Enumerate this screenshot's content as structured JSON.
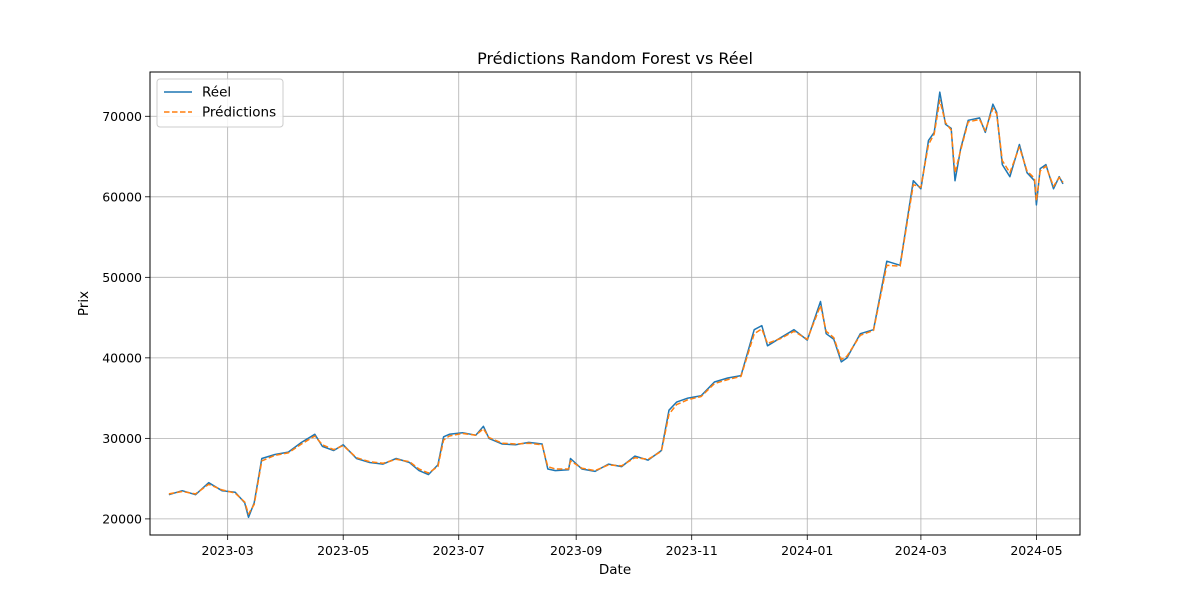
{
  "chart_data": {
    "type": "line",
    "title": "Prédictions Random Forest vs Réel",
    "xlabel": "Date",
    "ylabel": "Prix",
    "x_tick_labels": [
      "2023-03",
      "2023-05",
      "2023-07",
      "2023-09",
      "2023-11",
      "2024-01",
      "2024-03",
      "2024-05"
    ],
    "y_tick_labels": [
      "20000",
      "30000",
      "40000",
      "50000",
      "60000",
      "70000"
    ],
    "y_ticks": [
      20000,
      30000,
      40000,
      50000,
      60000,
      70000
    ],
    "ylim": [
      18000,
      75500
    ],
    "xlim": [
      "2023-01-19",
      "2024-05-24"
    ],
    "grid": true,
    "legend_position": "upper-left",
    "series": [
      {
        "name": "Réel",
        "color": "#1f77b4",
        "style": "solid",
        "x": [
          "2023-01-29",
          "2023-02-05",
          "2023-02-12",
          "2023-02-19",
          "2023-02-26",
          "2023-03-05",
          "2023-03-10",
          "2023-03-12",
          "2023-03-15",
          "2023-03-19",
          "2023-03-26",
          "2023-04-02",
          "2023-04-09",
          "2023-04-16",
          "2023-04-20",
          "2023-04-26",
          "2023-05-01",
          "2023-05-08",
          "2023-05-15",
          "2023-05-22",
          "2023-05-29",
          "2023-06-05",
          "2023-06-10",
          "2023-06-15",
          "2023-06-20",
          "2023-06-23",
          "2023-06-26",
          "2023-07-03",
          "2023-07-10",
          "2023-07-14",
          "2023-07-17",
          "2023-07-24",
          "2023-07-31",
          "2023-08-07",
          "2023-08-14",
          "2023-08-17",
          "2023-08-21",
          "2023-08-28",
          "2023-08-29",
          "2023-09-04",
          "2023-09-11",
          "2023-09-18",
          "2023-09-25",
          "2023-10-02",
          "2023-10-09",
          "2023-10-16",
          "2023-10-20",
          "2023-10-24",
          "2023-10-30",
          "2023-11-06",
          "2023-11-13",
          "2023-11-20",
          "2023-11-27",
          "2023-12-04",
          "2023-12-08",
          "2023-12-11",
          "2023-12-18",
          "2023-12-25",
          "2024-01-01",
          "2024-01-08",
          "2024-01-11",
          "2024-01-15",
          "2024-01-19",
          "2024-01-22",
          "2024-01-29",
          "2024-02-05",
          "2024-02-12",
          "2024-02-19",
          "2024-02-26",
          "2024-03-01",
          "2024-03-05",
          "2024-03-08",
          "2024-03-11",
          "2024-03-14",
          "2024-03-17",
          "2024-03-19",
          "2024-03-22",
          "2024-03-26",
          "2024-04-01",
          "2024-04-04",
          "2024-04-08",
          "2024-04-10",
          "2024-04-13",
          "2024-04-17",
          "2024-04-22",
          "2024-04-26",
          "2024-04-30",
          "2024-05-01",
          "2024-05-03",
          "2024-05-06",
          "2024-05-10",
          "2024-05-13",
          "2024-05-15"
        ],
        "values": [
          23000,
          23500,
          23000,
          24500,
          23500,
          23300,
          22000,
          20200,
          22000,
          27500,
          28000,
          28300,
          29500,
          30500,
          29000,
          28500,
          29200,
          27500,
          27000,
          26800,
          27500,
          27000,
          26000,
          25500,
          26700,
          30200,
          30500,
          30700,
          30400,
          31500,
          30000,
          29300,
          29200,
          29500,
          29300,
          26200,
          26000,
          26100,
          27500,
          26200,
          25900,
          26800,
          26500,
          27800,
          27300,
          28500,
          33500,
          34500,
          35000,
          35300,
          37000,
          37500,
          37800,
          43500,
          44000,
          41500,
          42500,
          43500,
          42200,
          47000,
          43000,
          42300,
          39500,
          40000,
          43000,
          43500,
          52000,
          51500,
          62000,
          61000,
          67000,
          68000,
          73000,
          69000,
          68500,
          62000,
          66000,
          69500,
          69800,
          68000,
          71500,
          70500,
          64000,
          62500,
          66500,
          63000,
          62000,
          59000,
          63500,
          64000,
          61000,
          62500,
          61600
        ]
      },
      {
        "name": "Prédictions",
        "color": "#ff7f0e",
        "style": "dashed",
        "x": [
          "2023-01-29",
          "2023-02-05",
          "2023-02-12",
          "2023-02-19",
          "2023-02-26",
          "2023-03-05",
          "2023-03-10",
          "2023-03-12",
          "2023-03-15",
          "2023-03-19",
          "2023-03-26",
          "2023-04-02",
          "2023-04-09",
          "2023-04-16",
          "2023-04-20",
          "2023-04-26",
          "2023-05-01",
          "2023-05-08",
          "2023-05-15",
          "2023-05-22",
          "2023-05-29",
          "2023-06-05",
          "2023-06-10",
          "2023-06-15",
          "2023-06-20",
          "2023-06-23",
          "2023-06-26",
          "2023-07-03",
          "2023-07-10",
          "2023-07-14",
          "2023-07-17",
          "2023-07-24",
          "2023-07-31",
          "2023-08-07",
          "2023-08-14",
          "2023-08-17",
          "2023-08-21",
          "2023-08-28",
          "2023-08-29",
          "2023-09-04",
          "2023-09-11",
          "2023-09-18",
          "2023-09-25",
          "2023-10-02",
          "2023-10-09",
          "2023-10-16",
          "2023-10-20",
          "2023-10-24",
          "2023-10-30",
          "2023-11-06",
          "2023-11-13",
          "2023-11-20",
          "2023-11-27",
          "2023-12-04",
          "2023-12-08",
          "2023-12-11",
          "2023-12-18",
          "2023-12-25",
          "2024-01-01",
          "2024-01-08",
          "2024-01-11",
          "2024-01-15",
          "2024-01-19",
          "2024-01-22",
          "2024-01-29",
          "2024-02-05",
          "2024-02-12",
          "2024-02-19",
          "2024-02-26",
          "2024-03-01",
          "2024-03-05",
          "2024-03-08",
          "2024-03-11",
          "2024-03-14",
          "2024-03-17",
          "2024-03-19",
          "2024-03-22",
          "2024-03-26",
          "2024-04-01",
          "2024-04-04",
          "2024-04-08",
          "2024-04-10",
          "2024-04-13",
          "2024-04-17",
          "2024-04-22",
          "2024-04-26",
          "2024-04-30",
          "2024-05-01",
          "2024-05-03",
          "2024-05-06",
          "2024-05-10",
          "2024-05-13",
          "2024-05-15"
        ],
        "values": [
          23100,
          23400,
          23100,
          24300,
          23600,
          23200,
          22100,
          20600,
          21800,
          27200,
          27900,
          28200,
          29300,
          30300,
          29200,
          28600,
          29100,
          27600,
          27100,
          26900,
          27400,
          27100,
          26200,
          25700,
          26500,
          29800,
          30300,
          30600,
          30400,
          31200,
          30100,
          29400,
          29300,
          29400,
          29200,
          26500,
          26200,
          26200,
          27200,
          26300,
          26000,
          26700,
          26600,
          27600,
          27400,
          28400,
          33000,
          34200,
          34800,
          35200,
          36800,
          37300,
          37700,
          43000,
          43600,
          41800,
          42400,
          43300,
          42300,
          46500,
          43300,
          42500,
          39800,
          40200,
          42800,
          43400,
          51500,
          51400,
          61500,
          61200,
          66500,
          67800,
          72000,
          69200,
          68300,
          63000,
          65800,
          69300,
          69600,
          68200,
          71000,
          70300,
          64500,
          63000,
          66200,
          63200,
          62300,
          59500,
          63200,
          63800,
          61300,
          62400,
          61800
        ]
      }
    ]
  }
}
